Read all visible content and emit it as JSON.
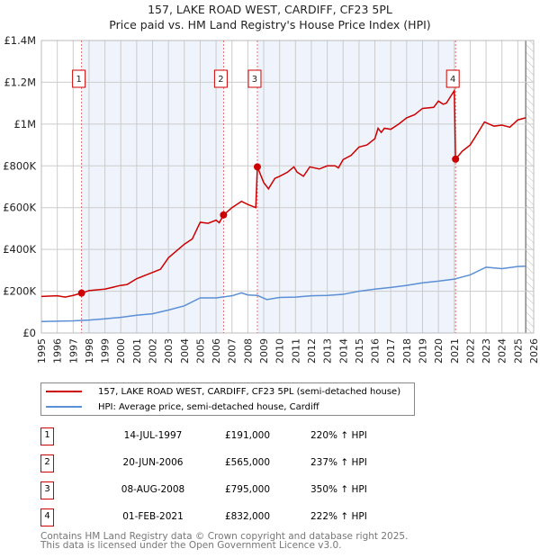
{
  "title_line1": "157, LAKE ROAD WEST, CARDIFF, CF23 5PL",
  "title_line2": "Price paid vs. HM Land Registry's House Price Index (HPI)",
  "colors": {
    "property": "#cc0000",
    "hpi": "#5b8fd6",
    "shade": "#eef3fc"
  },
  "chart_data": {
    "type": "line",
    "title": "Price paid vs. HM Land Registry's House Price Index (HPI)",
    "xlim": [
      1995,
      2026
    ],
    "ylim": [
      0,
      1400000
    ],
    "yticks": [
      0,
      200000,
      400000,
      600000,
      800000,
      1000000,
      1200000,
      1400000
    ],
    "ytick_labels": [
      "£0",
      "£200K",
      "£400K",
      "£600K",
      "£800K",
      "£1M",
      "£1.2M",
      "£1.4M"
    ],
    "xticks": [
      1995,
      1996,
      1997,
      1998,
      1999,
      2000,
      2001,
      2002,
      2003,
      2004,
      2005,
      2006,
      2007,
      2008,
      2009,
      2010,
      2011,
      2012,
      2013,
      2014,
      2015,
      2016,
      2017,
      2018,
      2019,
      2020,
      2021,
      2022,
      2023,
      2024,
      2025,
      2026
    ],
    "grid": true,
    "series": [
      {
        "name": "157, LAKE ROAD WEST, CARDIFF, CF23 5PL (semi-detached house)",
        "color": "#cc0000",
        "points": [
          [
            1995,
            175000
          ],
          [
            1996,
            178000
          ],
          [
            1996.5,
            172000
          ],
          [
            1997,
            180000
          ],
          [
            1997.53,
            191000
          ],
          [
            1998,
            203000
          ],
          [
            1999,
            210000
          ],
          [
            2000,
            228000
          ],
          [
            2000.4,
            232000
          ],
          [
            2001,
            260000
          ],
          [
            2002,
            290000
          ],
          [
            2002.5,
            305000
          ],
          [
            2003,
            360000
          ],
          [
            2004,
            425000
          ],
          [
            2004.5,
            450000
          ],
          [
            2005,
            530000
          ],
          [
            2005.5,
            525000
          ],
          [
            2006,
            540000
          ],
          [
            2006.2,
            528000
          ],
          [
            2006.47,
            565000
          ],
          [
            2007,
            600000
          ],
          [
            2007.6,
            630000
          ],
          [
            2008,
            615000
          ],
          [
            2008.5,
            600000
          ],
          [
            2008.6,
            795000
          ],
          [
            2009,
            720000
          ],
          [
            2009.3,
            690000
          ],
          [
            2009.7,
            740000
          ],
          [
            2010,
            750000
          ],
          [
            2010.5,
            770000
          ],
          [
            2010.9,
            795000
          ],
          [
            2011.1,
            770000
          ],
          [
            2011.5,
            750000
          ],
          [
            2011.9,
            795000
          ],
          [
            2012.5,
            785000
          ],
          [
            2013,
            800000
          ],
          [
            2013.5,
            800000
          ],
          [
            2013.7,
            790000
          ],
          [
            2014,
            830000
          ],
          [
            2014.5,
            850000
          ],
          [
            2015,
            890000
          ],
          [
            2015.5,
            900000
          ],
          [
            2016,
            930000
          ],
          [
            2016.2,
            980000
          ],
          [
            2016.4,
            960000
          ],
          [
            2016.6,
            980000
          ],
          [
            2017,
            975000
          ],
          [
            2017.5,
            1000000
          ],
          [
            2018,
            1030000
          ],
          [
            2018.5,
            1045000
          ],
          [
            2019,
            1075000
          ],
          [
            2019.7,
            1080000
          ],
          [
            2020,
            1110000
          ],
          [
            2020.3,
            1095000
          ],
          [
            2020.5,
            1100000
          ],
          [
            2021.0,
            1160000
          ],
          [
            2021.08,
            832000
          ],
          [
            2021.5,
            870000
          ],
          [
            2022,
            900000
          ],
          [
            2022.5,
            960000
          ],
          [
            2022.9,
            1010000
          ],
          [
            2023.5,
            990000
          ],
          [
            2024,
            995000
          ],
          [
            2024.5,
            985000
          ],
          [
            2025,
            1020000
          ],
          [
            2025.5,
            1030000
          ]
        ]
      },
      {
        "name": "HPI: Average price, semi-detached house, Cardiff",
        "color": "#5b8fd6",
        "points": [
          [
            1995,
            55000
          ],
          [
            1997,
            58000
          ],
          [
            1998,
            62000
          ],
          [
            1999,
            68000
          ],
          [
            2000,
            75000
          ],
          [
            2001,
            85000
          ],
          [
            2002,
            92000
          ],
          [
            2003,
            110000
          ],
          [
            2004,
            130000
          ],
          [
            2005,
            168000
          ],
          [
            2006,
            168000
          ],
          [
            2007,
            178000
          ],
          [
            2007.6,
            192000
          ],
          [
            2008,
            182000
          ],
          [
            2008.6,
            180000
          ],
          [
            2009.2,
            160000
          ],
          [
            2010,
            170000
          ],
          [
            2011,
            172000
          ],
          [
            2012,
            178000
          ],
          [
            2013,
            180000
          ],
          [
            2014,
            185000
          ],
          [
            2015,
            200000
          ],
          [
            2016,
            210000
          ],
          [
            2017,
            218000
          ],
          [
            2018,
            228000
          ],
          [
            2019,
            240000
          ],
          [
            2020,
            248000
          ],
          [
            2021,
            258000
          ],
          [
            2022,
            278000
          ],
          [
            2023,
            315000
          ],
          [
            2024,
            308000
          ],
          [
            2025,
            318000
          ],
          [
            2025.5,
            320000
          ]
        ]
      }
    ],
    "sales": [
      {
        "id": "1",
        "x": 1997.53,
        "price": 191000
      },
      {
        "id": "2",
        "x": 2006.47,
        "price": 565000
      },
      {
        "id": "3",
        "x": 2008.6,
        "price": 795000
      },
      {
        "id": "4",
        "x": 2021.08,
        "price": 832000
      }
    ],
    "shaded_ranges": [
      [
        1997.53,
        2006.47
      ],
      [
        2008.6,
        2021.08
      ]
    ],
    "forecast_from": 2025.5
  },
  "legend": {
    "property": "157, LAKE ROAD WEST, CARDIFF, CF23 5PL (semi-detached house)",
    "hpi": "HPI: Average price, semi-detached house, Cardiff"
  },
  "transactions": [
    {
      "num": "1",
      "date": "14-JUL-1997",
      "price": "£191,000",
      "hpi": "220% ↑ HPI"
    },
    {
      "num": "2",
      "date": "20-JUN-2006",
      "price": "£565,000",
      "hpi": "237% ↑ HPI"
    },
    {
      "num": "3",
      "date": "08-AUG-2008",
      "price": "£795,000",
      "hpi": "350% ↑ HPI"
    },
    {
      "num": "4",
      "date": "01-FEB-2021",
      "price": "£832,000",
      "hpi": "222% ↑ HPI"
    }
  ],
  "footer_line1": "Contains HM Land Registry data © Crown copyright and database right 2025.",
  "footer_line2": "This data is licensed under the Open Government Licence v3.0."
}
